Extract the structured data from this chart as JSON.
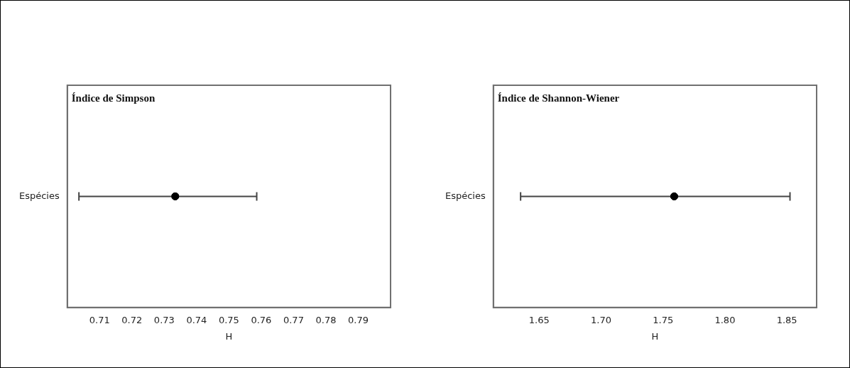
{
  "chart_data": [
    {
      "type": "scatter",
      "title": "Índice de Simpson",
      "orientation": "horizontal",
      "categories": [
        "Espécies"
      ],
      "values": [
        0.7334
      ],
      "errors": [
        [
          0.7036,
          0.7586
        ]
      ],
      "color": "#000000",
      "marker": "circle",
      "xlim": [
        0.7,
        0.8
      ],
      "xticks": [
        0.71,
        0.72,
        0.73,
        0.74,
        0.75,
        0.76,
        0.77,
        0.78,
        0.79
      ],
      "xlabel": "H",
      "grid": false,
      "legend": false
    },
    {
      "type": "scatter",
      "title": "Índice de Shannon-Wiener",
      "orientation": "horizontal",
      "categories": [
        "Espécies"
      ],
      "values": [
        1.759
      ],
      "errors": [
        [
          1.635,
          1.8525
        ]
      ],
      "color": "#000000",
      "marker": "circle",
      "xlim": [
        1.613,
        1.874
      ],
      "xticks": [
        {
          "value": 1.65,
          "label": "1.65"
        },
        {
          "value": 1.7,
          "label": "1.70"
        },
        {
          "value": 1.75,
          "label": "1.75"
        },
        {
          "value": 1.8,
          "label": "1.80"
        },
        {
          "value": 1.85,
          "label": "1.85"
        }
      ],
      "xlabel": "H",
      "grid": false,
      "legend": false
    }
  ]
}
